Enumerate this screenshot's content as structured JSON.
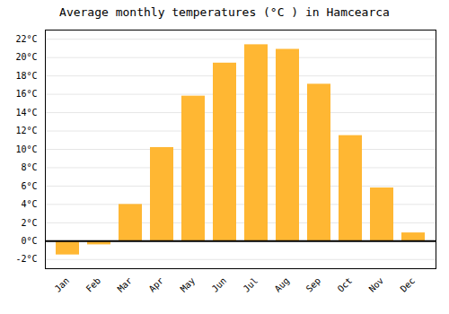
{
  "chart_data": {
    "type": "bar",
    "title": "Average monthly temperatures (°C ) in Hamcearca",
    "categories": [
      "Jan",
      "Feb",
      "Mar",
      "Apr",
      "May",
      "Jun",
      "Jul",
      "Aug",
      "Sep",
      "Oct",
      "Nov",
      "Dec"
    ],
    "values": [
      -1.5,
      -0.4,
      4.0,
      10.2,
      15.8,
      19.4,
      21.4,
      20.9,
      17.1,
      11.5,
      5.8,
      0.9
    ],
    "color": "#FFB733",
    "ylim": [
      -3,
      23
    ],
    "yticks": [
      {
        "value": -2,
        "label": "-2°C"
      },
      {
        "value": 0,
        "label": "0°C"
      },
      {
        "value": 2,
        "label": "2°C"
      },
      {
        "value": 4,
        "label": "4°C"
      },
      {
        "value": 6,
        "label": "6°C"
      },
      {
        "value": 8,
        "label": "8°C"
      },
      {
        "value": 10,
        "label": "10°C"
      },
      {
        "value": 12,
        "label": "12°C"
      },
      {
        "value": 14,
        "label": "14°C"
      },
      {
        "value": 16,
        "label": "16°C"
      },
      {
        "value": 18,
        "label": "18°C"
      },
      {
        "value": 20,
        "label": "20°C"
      },
      {
        "value": 22,
        "label": "22°C"
      }
    ],
    "grid": true
  }
}
